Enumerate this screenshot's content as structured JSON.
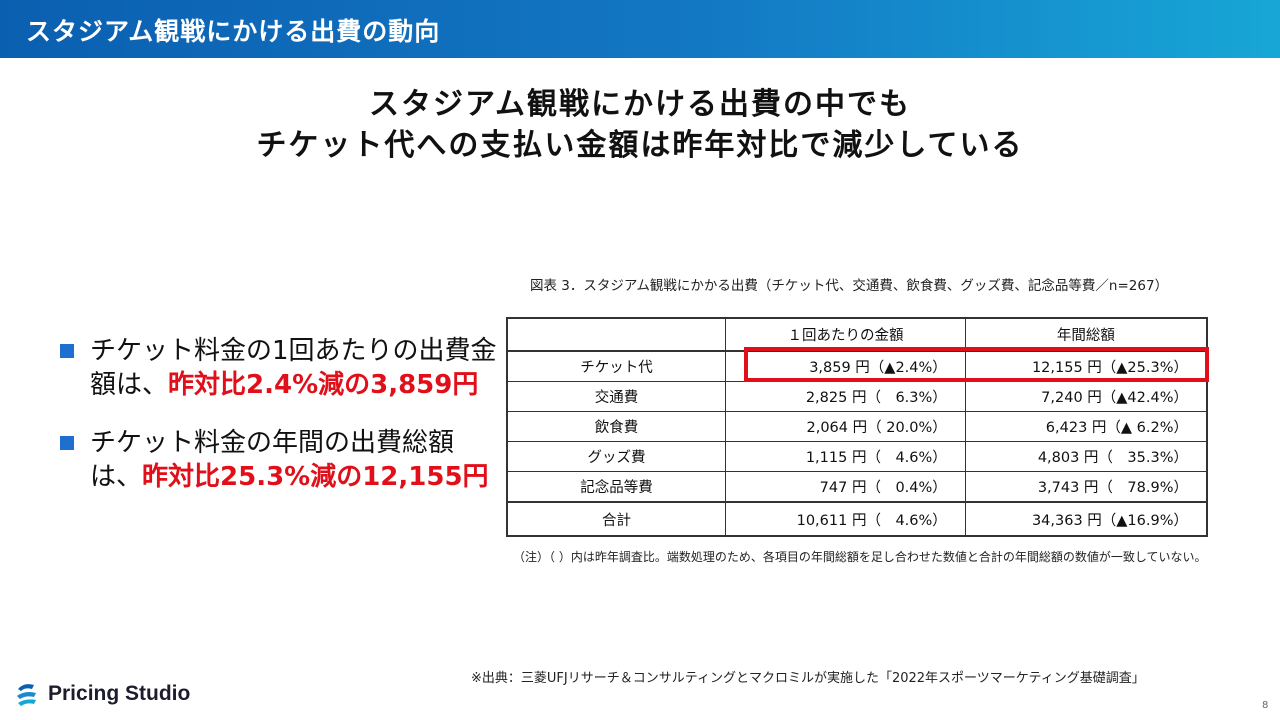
{
  "header": {
    "title": "スタジアム観戦にかける出費の動向"
  },
  "headline": {
    "line1": "スタジアム観戦にかける出費の中でも",
    "line2": "チケット代への支払い金額は昨年対比で減少している"
  },
  "bullets": [
    {
      "text": "チケット料金の1回あたりの出費金額は、",
      "highlight": "昨対比2.4%減の3,859円"
    },
    {
      "text": "チケット料金の年間の出費総額は、",
      "highlight": "昨対比25.3%減の12,155円"
    }
  ],
  "figure": {
    "caption": "図表 3．スタジアム観戦にかかる出費（チケット代、交通費、飲食費、グッズ費、記念品等費／n=267）",
    "columns": [
      "",
      "１回あたりの金額",
      "年間総額"
    ],
    "rows": [
      {
        "item": "チケット代",
        "per_visit": "3,859 円（▲2.4%）",
        "annual": "12,155 円（▲25.3%）"
      },
      {
        "item": "交通費",
        "per_visit": "2,825 円（　6.3%）",
        "annual": "7,240 円（▲42.4%）"
      },
      {
        "item": "飲食費",
        "per_visit": "2,064 円（ 20.0%）",
        "annual": "6,423 円（▲ 6.2%）"
      },
      {
        "item": "グッズ費",
        "per_visit": "1,115 円（　4.6%）",
        "annual": "4,803 円（　35.3%）"
      },
      {
        "item": "記念品等費",
        "per_visit": "747 円（　0.4%）",
        "annual": "3,743 円（　78.9%）"
      }
    ],
    "total": {
      "item": "合計",
      "per_visit": "10,611 円（　4.6%）",
      "annual": "34,363 円（▲16.9%）"
    },
    "note": "（注）（ ）内は昨年調査比。端数処理のため、各項目の年間総額を足し合わせた数値と合計の年間総額の数値が一致していない。"
  },
  "source": "※出典：三菱UFJリサーチ＆コンサルティングとマクロミルが実施した「2022年スポーツマーケティング基礎調査」",
  "logo": {
    "text": "Pricing Studio",
    "icon": "pricing-studio-logo-icon"
  },
  "page_number": "8",
  "colors": {
    "header_start": "#0b5fb0",
    "header_end": "#17a7d6",
    "accent_red": "#e10f1a",
    "bullet_blue": "#1f6fd0"
  }
}
